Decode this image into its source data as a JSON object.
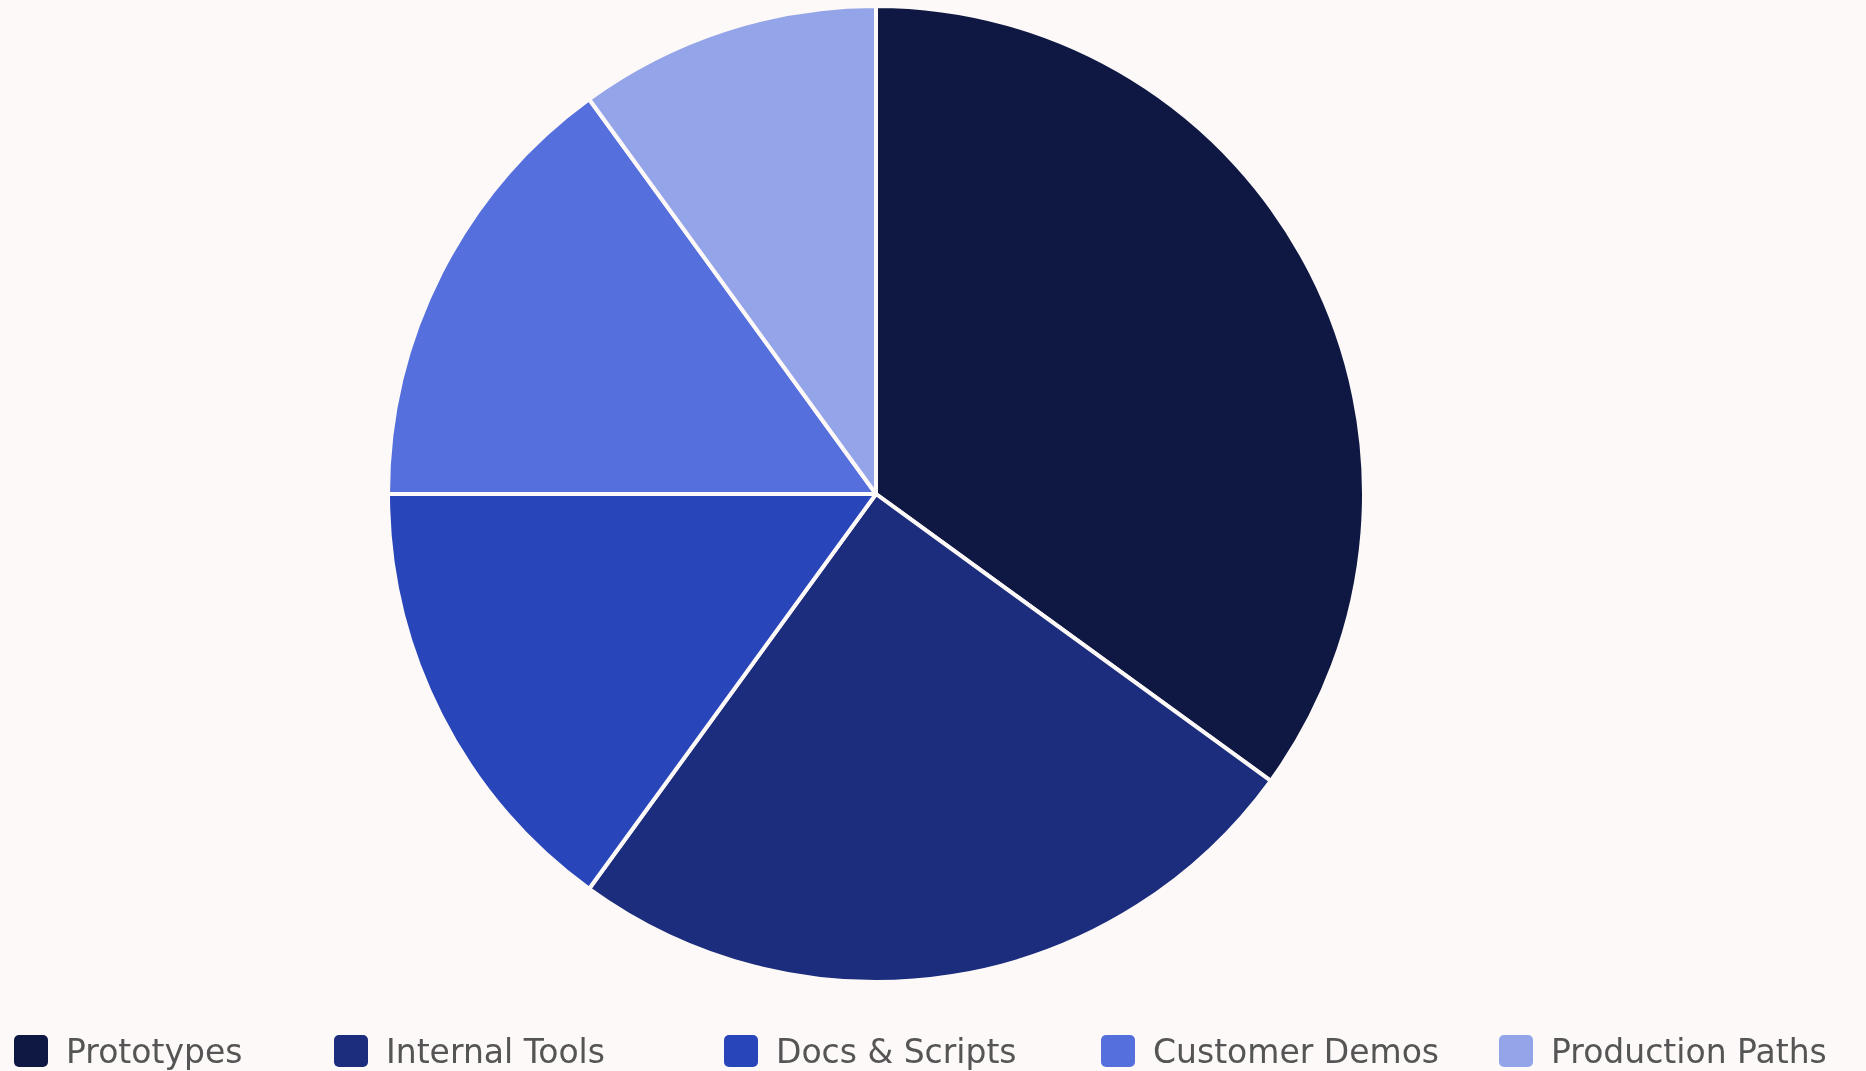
{
  "chart_data": {
    "type": "pie",
    "categories": [
      "Prototypes",
      "Internal Tools",
      "Docs & Scripts",
      "Customer Demos",
      "Production Paths"
    ],
    "values": [
      35,
      25,
      15,
      15,
      10
    ],
    "colors": [
      "#0e1842",
      "#1b2d7c",
      "#2846b9",
      "#5570dd",
      "#94a4e8"
    ],
    "legend": "bottom"
  }
}
